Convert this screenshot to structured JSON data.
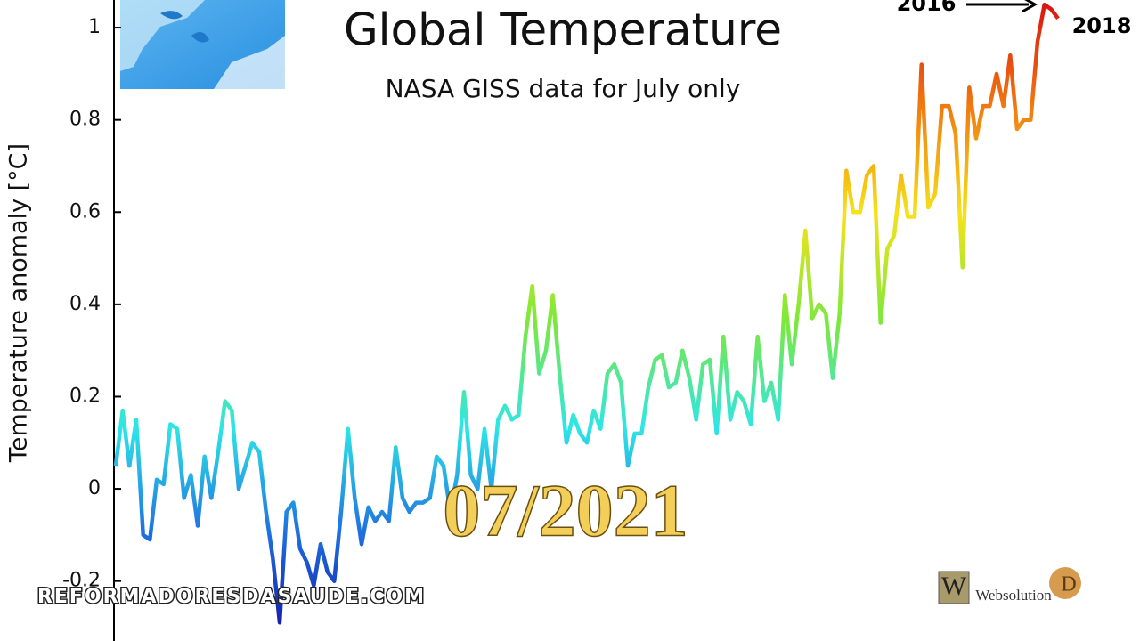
{
  "chart_data": {
    "type": "line",
    "title": "Global Temperature",
    "subtitle": "NASA GISS data for July only",
    "y_label": "Temperature anomaly [°C]",
    "ylim": [
      -0.33,
      1.06
    ],
    "yticks": [
      -0.2,
      0,
      0.2,
      0.4,
      0.6,
      0.8,
      1
    ],
    "colormap": [
      "#1414a0",
      "#1e6fe0",
      "#2ee6e6",
      "#7ee83a",
      "#f6e21a",
      "#f07a10",
      "#d81010"
    ],
    "values": [
      0.05,
      0.17,
      0.05,
      0.15,
      -0.1,
      -0.11,
      0.02,
      0.01,
      0.14,
      0.13,
      -0.02,
      0.03,
      -0.08,
      0.07,
      -0.02,
      0.08,
      0.19,
      0.17,
      0.0,
      0.05,
      0.1,
      0.08,
      -0.05,
      -0.15,
      -0.29,
      -0.05,
      -0.03,
      -0.13,
      -0.16,
      -0.21,
      -0.12,
      -0.18,
      -0.2,
      -0.05,
      0.13,
      -0.02,
      -0.12,
      -0.04,
      -0.07,
      -0.05,
      -0.07,
      0.09,
      -0.02,
      -0.05,
      -0.03,
      -0.03,
      -0.02,
      0.07,
      0.05,
      -0.05,
      0.03,
      0.21,
      0.03,
      0.0,
      0.13,
      0.0,
      0.15,
      0.18,
      0.15,
      0.16,
      0.33,
      0.44,
      0.25,
      0.3,
      0.42,
      0.25,
      0.1,
      0.16,
      0.12,
      0.1,
      0.17,
      0.13,
      0.25,
      0.27,
      0.23,
      0.05,
      0.12,
      0.12,
      0.22,
      0.28,
      0.29,
      0.22,
      0.23,
      0.3,
      0.24,
      0.15,
      0.27,
      0.28,
      0.12,
      0.33,
      0.15,
      0.21,
      0.19,
      0.14,
      0.33,
      0.19,
      0.23,
      0.15,
      0.42,
      0.27,
      0.4,
      0.56,
      0.37,
      0.4,
      0.38,
      0.24,
      0.38,
      0.69,
      0.6,
      0.6,
      0.68,
      0.7,
      0.36,
      0.52,
      0.55,
      0.68,
      0.59,
      0.59,
      0.92,
      0.61,
      0.64,
      0.83,
      0.83,
      0.77,
      0.48,
      0.87,
      0.76,
      0.83,
      0.83,
      0.9,
      0.83,
      0.94,
      0.78,
      0.8,
      0.8,
      0.97,
      1.05,
      1.04,
      1.02
    ],
    "annotations": [
      "2016",
      "2018"
    ],
    "overlay_text": "07/2021",
    "watermarks": [
      "REFORMADORESDASAUDE.COM",
      "Websolution"
    ]
  }
}
